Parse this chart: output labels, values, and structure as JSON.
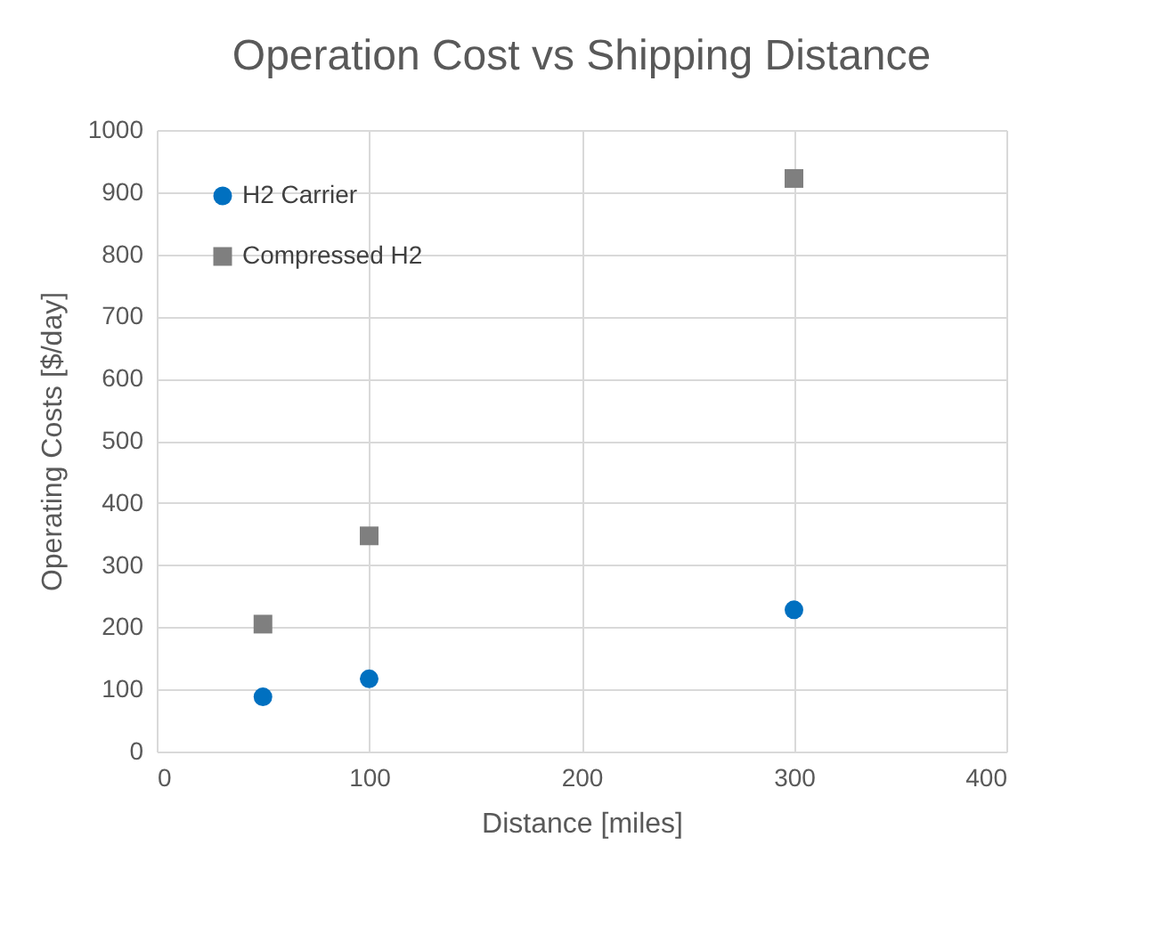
{
  "chart_data": {
    "type": "scatter",
    "title": "Operation Cost vs Shipping Distance",
    "xlabel": "Distance [miles]",
    "ylabel": "Operating Costs [$/day]",
    "x": [
      50,
      100,
      300
    ],
    "series": [
      {
        "name": "H2 Carrier",
        "color": "#0070c0",
        "marker": "circle",
        "values": [
          88,
          117,
          228
        ]
      },
      {
        "name": "Compressed H2",
        "color": "#7f7f7f",
        "marker": "square",
        "values": [
          205,
          347,
          922
        ]
      }
    ],
    "xlim": [
      0,
      400
    ],
    "xticks": [
      0,
      100,
      200,
      300,
      400
    ],
    "ylim": [
      0,
      1000
    ],
    "yticks": [
      0,
      100,
      200,
      300,
      400,
      500,
      600,
      700,
      800,
      900,
      1000
    ],
    "grid": true,
    "legend": "top left"
  }
}
